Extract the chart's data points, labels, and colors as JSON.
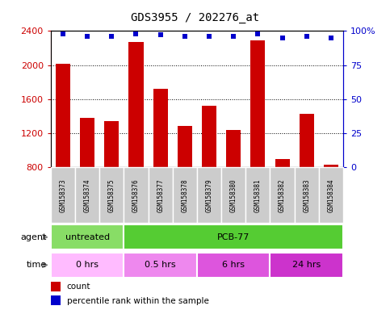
{
  "title": "GDS3955 / 202276_at",
  "samples": [
    "GSM158373",
    "GSM158374",
    "GSM158375",
    "GSM158376",
    "GSM158377",
    "GSM158378",
    "GSM158379",
    "GSM158380",
    "GSM158381",
    "GSM158382",
    "GSM158383",
    "GSM158384"
  ],
  "counts": [
    2020,
    1380,
    1340,
    2270,
    1720,
    1290,
    1520,
    1240,
    2290,
    900,
    1430,
    830
  ],
  "percentiles": [
    98,
    96,
    96,
    98,
    97,
    96,
    96,
    96,
    98,
    95,
    96,
    95
  ],
  "bar_color": "#cc0000",
  "dot_color": "#0000cc",
  "ylim_left": [
    800,
    2400
  ],
  "yticks_left": [
    800,
    1200,
    1600,
    2000,
    2400
  ],
  "ylim_right": [
    0,
    100
  ],
  "yticks_right": [
    0,
    25,
    50,
    75,
    100
  ],
  "agent_labels": [
    {
      "text": "untreated",
      "start": 0,
      "end": 3,
      "color": "#88dd66"
    },
    {
      "text": "PCB-77",
      "start": 3,
      "end": 12,
      "color": "#55cc33"
    }
  ],
  "time_labels": [
    {
      "text": "0 hrs",
      "start": 0,
      "end": 3,
      "color": "#ffbbff"
    },
    {
      "text": "0.5 hrs",
      "start": 3,
      "end": 6,
      "color": "#ee88ee"
    },
    {
      "text": "6 hrs",
      "start": 6,
      "end": 9,
      "color": "#dd55dd"
    },
    {
      "text": "24 hrs",
      "start": 9,
      "end": 12,
      "color": "#cc33cc"
    }
  ],
  "legend_count_color": "#cc0000",
  "legend_dot_color": "#0000cc",
  "bg_color": "#ffffff",
  "label_color_left": "#cc0000",
  "label_color_right": "#0000cc",
  "n_samples": 12,
  "sample_box_color": "#cccccc",
  "separator_color": "#999999"
}
